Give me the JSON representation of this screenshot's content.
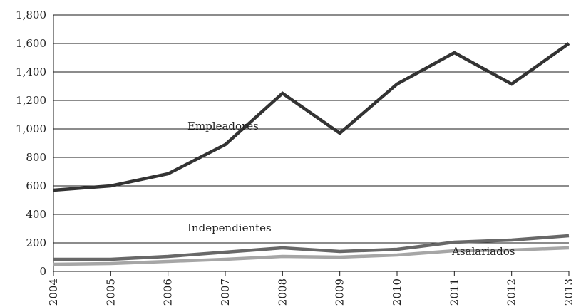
{
  "chart_data": {
    "type": "line",
    "x": [
      "2004",
      "2005",
      "2006",
      "2007",
      "2008",
      "2009",
      "2010",
      "2011",
      "2012",
      "2013"
    ],
    "ylim": [
      0,
      1800
    ],
    "yticks": [
      "0",
      "200",
      "400",
      "600",
      "800",
      "1,000",
      "1,200",
      "1,400",
      "1,600",
      "1,800"
    ],
    "grid": "horizontal",
    "series": [
      {
        "name": "Empleadores",
        "color": "#333333",
        "values": [
          570,
          600,
          685,
          890,
          1250,
          970,
          1315,
          1535,
          1315,
          1600
        ]
      },
      {
        "name": "Independientes",
        "color": "#686868",
        "values": [
          85,
          85,
          105,
          135,
          165,
          140,
          155,
          205,
          220,
          250
        ]
      },
      {
        "name": "Asalariados",
        "color": "#a6a6a6",
        "values": [
          50,
          55,
          70,
          85,
          105,
          100,
          115,
          145,
          150,
          165
        ]
      }
    ]
  }
}
